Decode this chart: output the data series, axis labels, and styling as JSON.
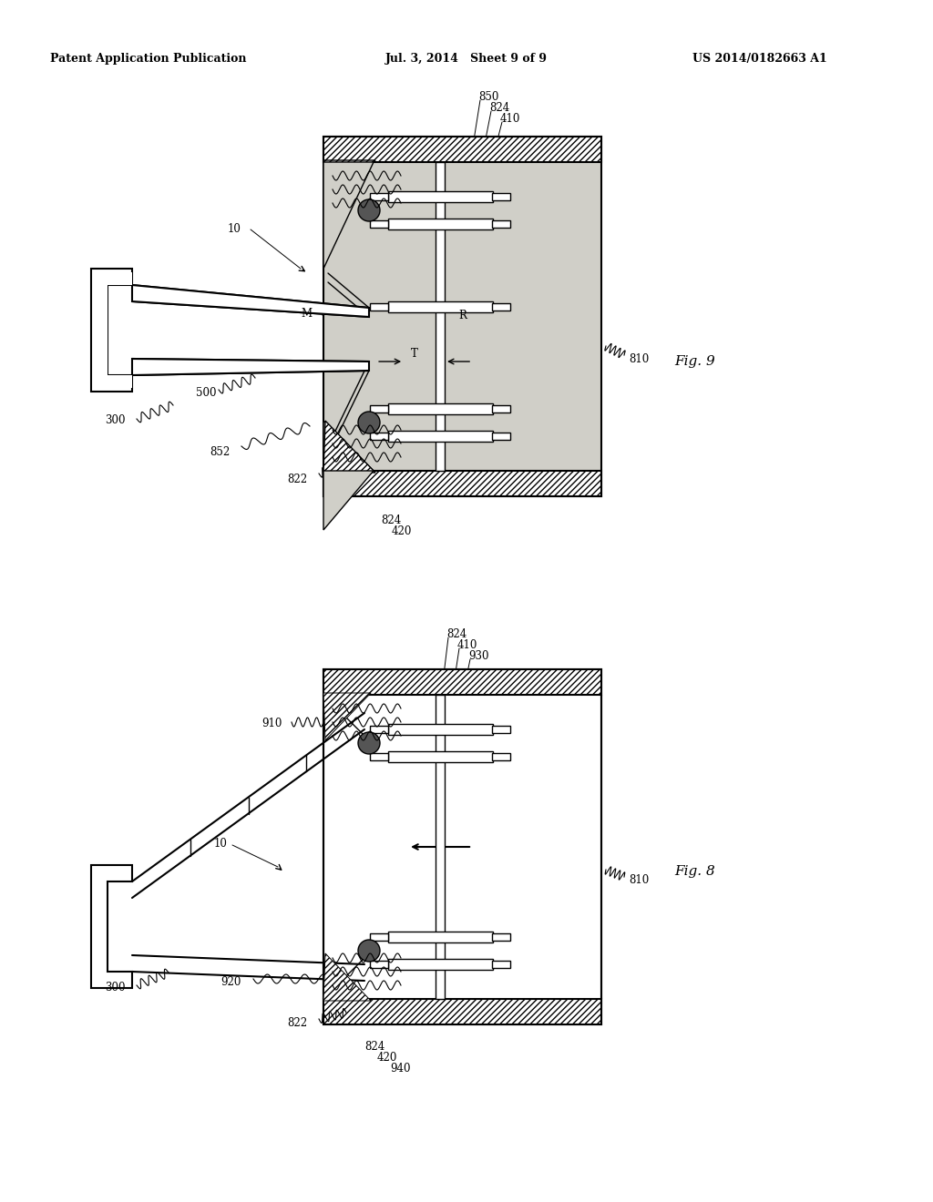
{
  "bg_color": "#ffffff",
  "header_left": "Patent Application Publication",
  "header_center": "Jul. 3, 2014   Sheet 9 of 9",
  "header_right": "US 2014/0182663 A1",
  "fig9_label": "Fig. 9",
  "fig8_label": "Fig. 8",
  "stipple_color": "#d0cfc8",
  "hatch_pattern": "////",
  "line_color": "#000000"
}
